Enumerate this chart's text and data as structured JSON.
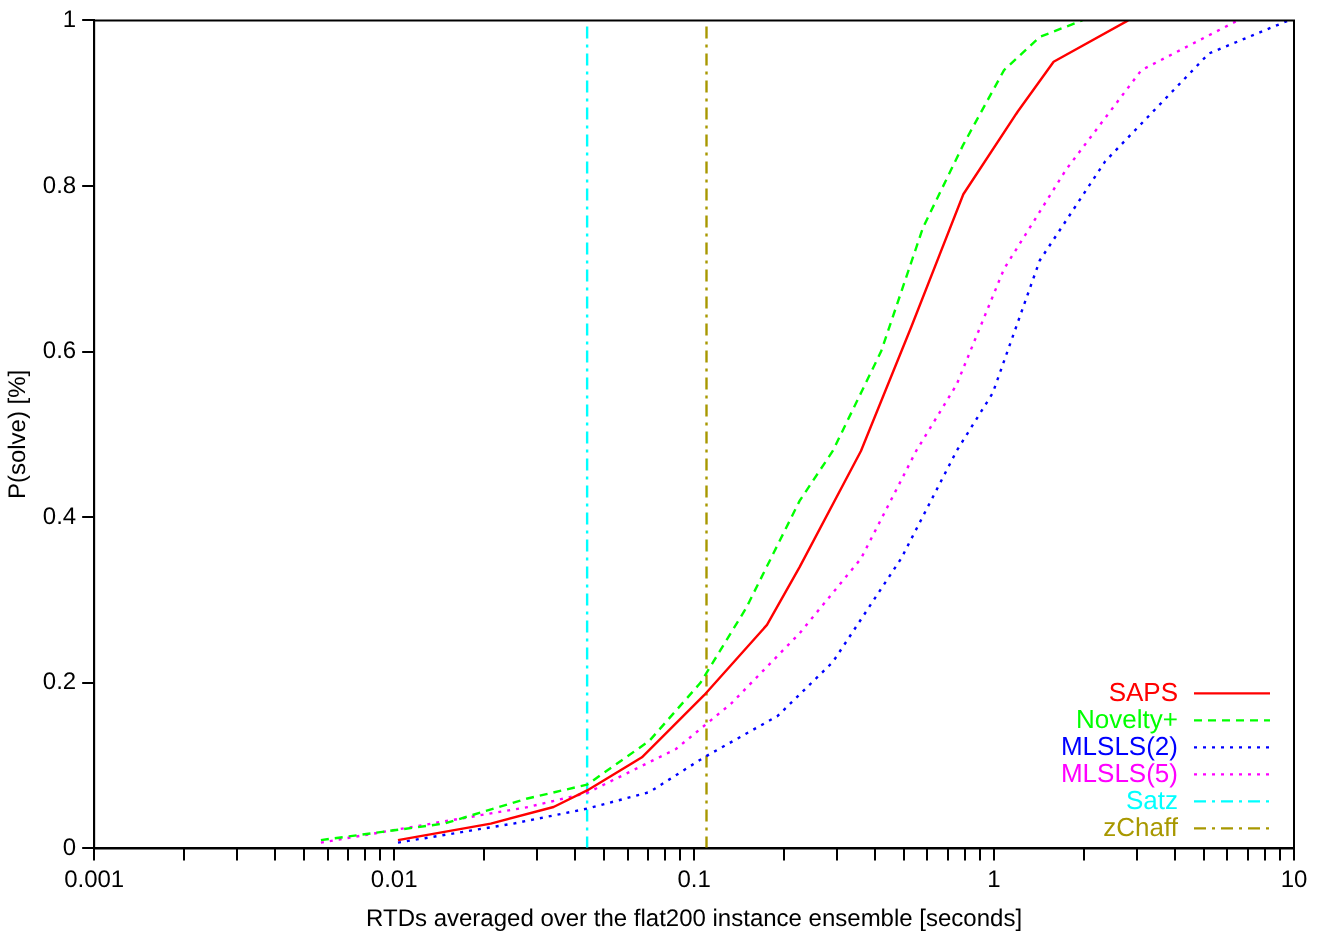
{
  "chart_data": {
    "type": "line",
    "xlabel": "RTDs averaged over the flat200 instance ensemble [seconds]",
    "ylabel": "P(solve) [%]",
    "log": "x",
    "grid": false,
    "legend": "bottom right",
    "marker": "none",
    "xlim": [
      0.001,
      10
    ],
    "xticks": [
      0.001,
      {
        "value": 0.002,
        "label": null
      },
      {
        "value": 0.003,
        "label": null
      },
      {
        "value": 0.004,
        "label": null
      },
      {
        "value": 0.005,
        "label": null
      },
      {
        "value": 0.006,
        "label": null
      },
      {
        "value": 0.007,
        "label": null
      },
      {
        "value": 0.008,
        "label": null
      },
      {
        "value": 0.009,
        "label": null
      },
      0.01,
      {
        "value": 0.02,
        "label": null
      },
      {
        "value": 0.03,
        "label": null
      },
      {
        "value": 0.04,
        "label": null
      },
      {
        "value": 0.05,
        "label": null
      },
      {
        "value": 0.06,
        "label": null
      },
      {
        "value": 0.07,
        "label": null
      },
      {
        "value": 0.08,
        "label": null
      },
      {
        "value": 0.09,
        "label": null
      },
      0.1,
      {
        "value": 0.2,
        "label": null
      },
      {
        "value": 0.3,
        "label": null
      },
      {
        "value": 0.4,
        "label": null
      },
      {
        "value": 0.5,
        "label": null
      },
      {
        "value": 0.6,
        "label": null
      },
      {
        "value": 0.7,
        "label": null
      },
      {
        "value": 0.8,
        "label": null
      },
      {
        "value": 0.9,
        "label": null
      },
      1,
      {
        "value": 2,
        "label": null
      },
      {
        "value": 3,
        "label": null
      },
      {
        "value": 4,
        "label": null
      },
      {
        "value": 5,
        "label": null
      },
      {
        "value": 6,
        "label": null
      },
      {
        "value": 7,
        "label": null
      },
      {
        "value": 8,
        "label": null
      },
      {
        "value": 9,
        "label": null
      },
      10
    ],
    "ylim": [
      0,
      1
    ],
    "yticks": [
      0,
      0.2,
      0.4,
      0.6,
      0.8,
      1
    ],
    "series": [
      {
        "name": "SAPS",
        "color": "#ff0000",
        "line_style": "solid",
        "x": [
          0.0103,
          0.021,
          0.034,
          0.044,
          0.067,
          0.108,
          0.175,
          0.225,
          0.36,
          0.53,
          0.79,
          1.2,
          1.58,
          2.8
        ],
        "values": [
          0.01,
          0.03,
          0.05,
          0.07,
          0.11,
          0.185,
          0.27,
          0.34,
          0.48,
          0.63,
          0.79,
          0.89,
          0.95,
          1.0
        ]
      },
      {
        "name": "Novelty+",
        "color": "#00ff00",
        "line_style": "dashed",
        "x": [
          0.0057,
          0.0147,
          0.0276,
          0.044,
          0.071,
          0.105,
          0.149,
          0.225,
          0.29,
          0.42,
          0.58,
          0.79,
          1.08,
          1.42,
          1.97
        ],
        "values": [
          0.01,
          0.03,
          0.06,
          0.077,
          0.13,
          0.2,
          0.29,
          0.42,
          0.48,
          0.6,
          0.75,
          0.85,
          0.94,
          0.98,
          1.0
        ]
      },
      {
        "name": "MLSLS(2)",
        "color": "#0000ff",
        "line_style": "dotted",
        "x": [
          0.0103,
          0.025,
          0.044,
          0.071,
          0.108,
          0.19,
          0.29,
          0.49,
          0.75,
          0.99,
          1.42,
          2.35,
          5.2,
          9.6
        ],
        "values": [
          0.007,
          0.03,
          0.048,
          0.068,
          0.11,
          0.16,
          0.225,
          0.35,
          0.48,
          0.55,
          0.71,
          0.83,
          0.96,
          1.0
        ]
      },
      {
        "name": "MLSLS(5)",
        "color": "#ff00ff",
        "line_style": "dotted",
        "x": [
          0.0057,
          0.028,
          0.044,
          0.087,
          0.133,
          0.225,
          0.36,
          0.55,
          0.75,
          1.08,
          1.74,
          3.1,
          6.5
        ],
        "values": [
          0.007,
          0.05,
          0.067,
          0.12,
          0.175,
          0.26,
          0.35,
          0.48,
          0.56,
          0.7,
          0.82,
          0.94,
          1.0
        ]
      },
      {
        "name": "Satz",
        "color": "#00ffff",
        "line_style": "dashdot",
        "x": [
          0.044,
          0.044
        ],
        "values": [
          0,
          1
        ]
      },
      {
        "name": "zChaff",
        "color": "#a89800",
        "line_style": "dashdot",
        "x": [
          0.11,
          0.11
        ],
        "values": [
          0,
          1
        ]
      }
    ]
  }
}
